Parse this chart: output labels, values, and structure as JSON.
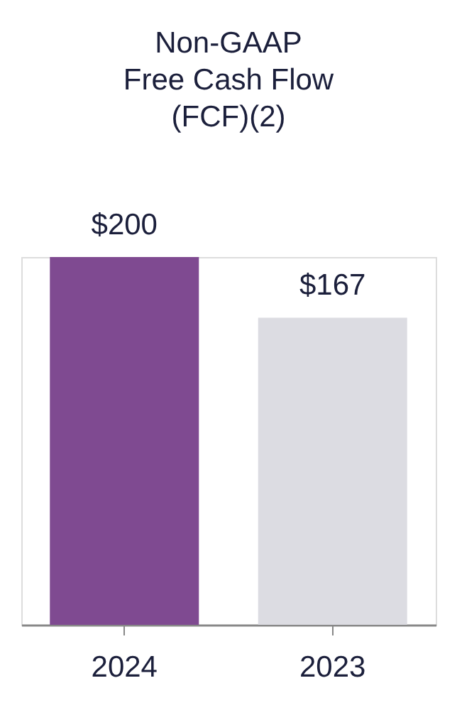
{
  "chart_data": {
    "type": "bar",
    "title": "Non-GAAP\nFree Cash Flow\n(FCF)(2)",
    "categories": [
      "2024",
      "2023"
    ],
    "values": [
      200,
      167
    ],
    "colors": [
      "#7f4a91",
      "#dcdce2"
    ],
    "value_labels": [
      "$200",
      "$167"
    ],
    "grid": false
  }
}
